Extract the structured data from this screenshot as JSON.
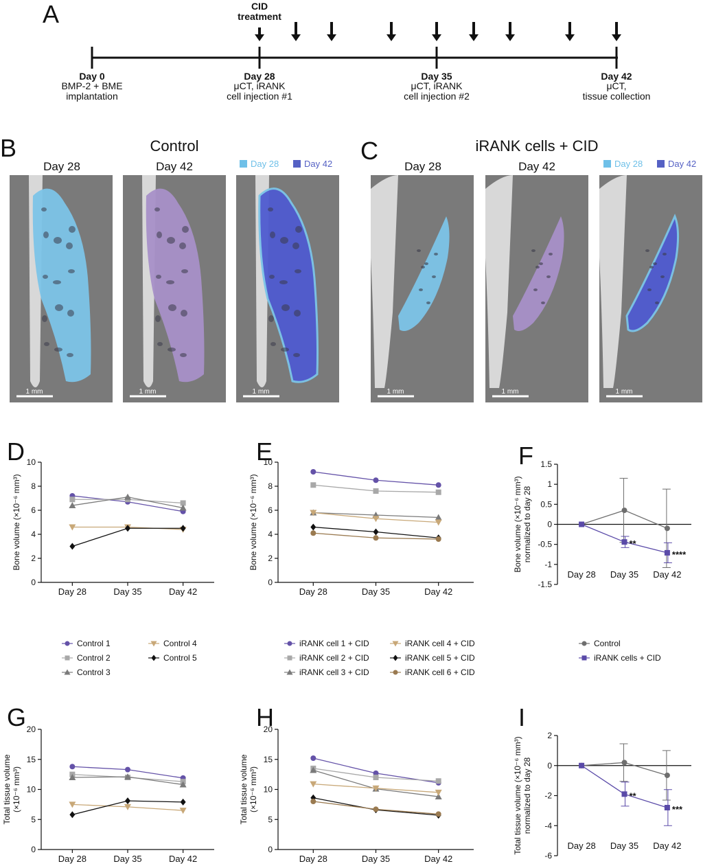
{
  "colors": {
    "day28": "#6fc0e8",
    "day42": "#5561c4",
    "control1": "#6452a8",
    "control2": "#a8a8a8",
    "control3": "#7a7a7a",
    "control4": "#c8a878",
    "control5": "#111111",
    "irank6": "#9a7a50",
    "groupControl": "#6e6e6e",
    "groupIrank": "#5a4aa8",
    "ctBg": "#7a7a7a",
    "boneGray": "#d8d8d8",
    "scaffoldBlue": "#7cc4e8",
    "scaffoldPurple": "#a890c8",
    "overlayBlue": "#4f5bd0"
  },
  "timeline": {
    "panel_letter": "A",
    "treatment_label": "CID\ntreatment",
    "events": [
      {
        "day": "Day 0",
        "desc": [
          "BMP-2 + BME",
          "implantation"
        ]
      },
      {
        "day": "Day 28",
        "desc": [
          "μCT, iRANK",
          "cell injection #1"
        ]
      },
      {
        "day": "Day 35",
        "desc": [
          "μCT, iRANK",
          "cell injection #2"
        ]
      },
      {
        "day": "Day 42",
        "desc": [
          "μCT,",
          "tissue collection"
        ]
      }
    ]
  },
  "images": {
    "panel_B": "B",
    "panel_C": "C",
    "control_title": "Control",
    "irank_title": "iRANK cells + CID",
    "col_day28": "Day 28",
    "col_day42": "Day 42",
    "legend_day28": "Day 28",
    "legend_day42": "Day 42",
    "scale_label": "1 mm"
  },
  "chart_data": [
    {
      "panel": "D",
      "type": "line",
      "categories": [
        "Day 28",
        "Day 35",
        "Day 42"
      ],
      "ylabel": "Bone volume (×10⁻⁶ mm³)",
      "ylim": [
        0,
        10
      ],
      "yticks": [
        0,
        2,
        4,
        6,
        8,
        10
      ],
      "series": [
        {
          "name": "Control 1",
          "marker": "circle",
          "color": "#6452a8",
          "values": [
            7.2,
            6.7,
            5.9
          ]
        },
        {
          "name": "Control 2",
          "marker": "square",
          "color": "#a8a8a8",
          "values": [
            6.9,
            6.9,
            6.6
          ]
        },
        {
          "name": "Control 3",
          "marker": "triangle-up",
          "color": "#7a7a7a",
          "values": [
            6.4,
            7.1,
            6.2
          ]
        },
        {
          "name": "Control 4",
          "marker": "triangle-down",
          "color": "#c8a878",
          "values": [
            4.6,
            4.6,
            4.4
          ]
        },
        {
          "name": "Control 5",
          "marker": "diamond",
          "color": "#111111",
          "values": [
            3.0,
            4.5,
            4.5
          ]
        }
      ]
    },
    {
      "panel": "E",
      "type": "line",
      "categories": [
        "Day 28",
        "Day 35",
        "Day 42"
      ],
      "ylabel": "Bone volume (×10⁻⁶ mm³)",
      "ylim": [
        0,
        10
      ],
      "yticks": [
        0,
        2,
        4,
        6,
        8,
        10
      ],
      "series": [
        {
          "name": "iRANK cell 1 + CID",
          "marker": "circle",
          "color": "#6452a8",
          "values": [
            9.2,
            8.5,
            8.1
          ]
        },
        {
          "name": "iRANK cell 2 + CID",
          "marker": "square",
          "color": "#a8a8a8",
          "values": [
            8.1,
            7.6,
            7.5
          ]
        },
        {
          "name": "iRANK cell 3 + CID",
          "marker": "triangle-up",
          "color": "#7a7a7a",
          "values": [
            5.8,
            5.6,
            5.4
          ]
        },
        {
          "name": "iRANK cell 4 + CID",
          "marker": "triangle-down",
          "color": "#c8a878",
          "values": [
            5.8,
            5.3,
            5.0
          ]
        },
        {
          "name": "iRANK cell 5 + CID",
          "marker": "diamond",
          "color": "#111111",
          "values": [
            4.6,
            4.2,
            3.7
          ]
        },
        {
          "name": "iRANK cell 6 + CID",
          "marker": "circle",
          "color": "#9a7a50",
          "values": [
            4.1,
            3.7,
            3.6
          ]
        }
      ]
    },
    {
      "panel": "F",
      "type": "line",
      "categories": [
        "Day 28",
        "Day 35",
        "Day 42"
      ],
      "ylabel": "Bone volume (×10⁻⁶ mm³)\nnormalized to day 28",
      "ylim": [
        -1.5,
        1.5
      ],
      "yticks": [
        -1.5,
        -1.0,
        -0.5,
        0.0,
        0.5,
        1.0,
        1.5
      ],
      "series": [
        {
          "name": "Control",
          "marker": "circle",
          "color": "#6e6e6e",
          "values": [
            0.0,
            0.35,
            -0.1
          ],
          "errors": [
            0.0,
            0.8,
            0.98
          ]
        },
        {
          "name": "iRANK cells + CID",
          "marker": "square",
          "color": "#5a4aa8",
          "values": [
            0.0,
            -0.44,
            -0.71
          ],
          "errors": [
            0.0,
            0.14,
            0.25
          ]
        }
      ],
      "annotations": [
        {
          "index": 1,
          "text": "**"
        },
        {
          "index": 2,
          "text": "****"
        }
      ]
    },
    {
      "panel": "G",
      "type": "line",
      "categories": [
        "Day 28",
        "Day 35",
        "Day 42"
      ],
      "ylabel": "Total tissue volume\n(×10⁻⁶ mm³)",
      "ylim": [
        0,
        20
      ],
      "yticks": [
        0,
        5,
        10,
        15,
        20
      ],
      "series": [
        {
          "name": "Control 1",
          "marker": "circle",
          "color": "#6452a8",
          "values": [
            13.8,
            13.3,
            11.9
          ]
        },
        {
          "name": "Control 2",
          "marker": "square",
          "color": "#a8a8a8",
          "values": [
            12.5,
            12.0,
            11.3
          ]
        },
        {
          "name": "Control 3",
          "marker": "triangle-up",
          "color": "#7a7a7a",
          "values": [
            12.0,
            12.1,
            10.8
          ]
        },
        {
          "name": "Control 4",
          "marker": "triangle-down",
          "color": "#c8a878",
          "values": [
            7.5,
            7.1,
            6.5
          ]
        },
        {
          "name": "Control 5",
          "marker": "diamond",
          "color": "#111111",
          "values": [
            5.8,
            8.1,
            7.9
          ]
        }
      ]
    },
    {
      "panel": "H",
      "type": "line",
      "categories": [
        "Day 28",
        "Day 35",
        "Day 42"
      ],
      "ylabel": "Total tissue volume\n(×10⁻⁶ mm³)",
      "ylim": [
        0,
        20
      ],
      "yticks": [
        0,
        5,
        10,
        15,
        20
      ],
      "series": [
        {
          "name": "iRANK cell 1 + CID",
          "marker": "circle",
          "color": "#6452a8",
          "values": [
            15.2,
            12.7,
            11.1
          ]
        },
        {
          "name": "iRANK cell 2 + CID",
          "marker": "square",
          "color": "#a8a8a8",
          "values": [
            13.5,
            12.0,
            11.4
          ]
        },
        {
          "name": "iRANK cell 3 + CID",
          "marker": "triangle-up",
          "color": "#7a7a7a",
          "values": [
            13.2,
            10.1,
            8.8
          ]
        },
        {
          "name": "iRANK cell 4 + CID",
          "marker": "triangle-down",
          "color": "#c8a878",
          "values": [
            10.9,
            10.2,
            9.5
          ]
        },
        {
          "name": "iRANK cell 5 + CID",
          "marker": "diamond",
          "color": "#111111",
          "values": [
            8.6,
            6.6,
            5.7
          ]
        },
        {
          "name": "iRANK cell 6 + CID",
          "marker": "circle",
          "color": "#9a7a50",
          "values": [
            8.0,
            6.7,
            5.9
          ]
        }
      ]
    },
    {
      "panel": "I",
      "type": "line",
      "categories": [
        "Day 28",
        "Day 35",
        "Day 42"
      ],
      "ylabel": "Total tissue volume (×10⁻⁶ mm³)\nnormalized to day 28",
      "ylim": [
        -6,
        2
      ],
      "yticks": [
        -6,
        -4,
        -2,
        0,
        2
      ],
      "series": [
        {
          "name": "Control",
          "marker": "circle",
          "color": "#6e6e6e",
          "values": [
            0.0,
            0.2,
            -0.65
          ],
          "errors": [
            0.0,
            1.25,
            1.65
          ]
        },
        {
          "name": "iRANK cells + CID",
          "marker": "square",
          "color": "#5a4aa8",
          "values": [
            0.0,
            -1.9,
            -2.8
          ],
          "errors": [
            0.0,
            0.8,
            1.2
          ]
        }
      ],
      "annotations": [
        {
          "index": 1,
          "text": "**"
        },
        {
          "index": 2,
          "text": "***"
        }
      ]
    }
  ],
  "legends": {
    "control": [
      "Control 1",
      "Control 2",
      "Control 3",
      "Control 4",
      "Control 5"
    ],
    "irank": [
      "iRANK cell 1 + CID",
      "iRANK cell 2 + CID",
      "iRANK cell 3 + CID",
      "iRANK cell 4 + CID",
      "iRANK cell 5 + CID",
      "iRANK cell 6 + CID"
    ],
    "group": [
      "Control",
      "iRANK cells + CID"
    ]
  }
}
